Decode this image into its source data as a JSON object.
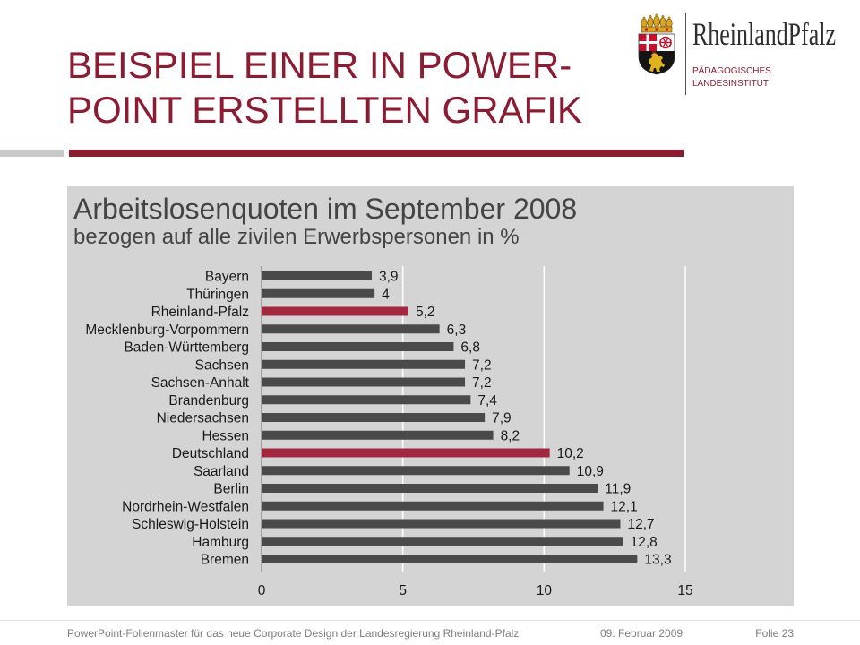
{
  "slide": {
    "title_line1": "BEISPIEL EINER IN POWER-",
    "title_line2": "POINT ERSTELLTEN GRAFIK"
  },
  "logo": {
    "crest_icon": "coat-of-arms-rheinland-pfalz",
    "wordmark": "RheinlandPfalz",
    "line1": "PÄDAGOGISCHES",
    "line2": "LANDESINSTITUT"
  },
  "colors": {
    "accent": "#8b1c32",
    "panel_background": "#d4d4d4",
    "bar_default": "#4a4a4a",
    "bar_highlight": "#a2283f",
    "gridline": "#ffffff"
  },
  "chart_data": {
    "type": "bar",
    "orientation": "horizontal",
    "title": "Arbeitslosenquoten im September 2008",
    "subtitle": "bezogen auf alle zivilen Erwerbspersonen in %",
    "categories": [
      "Bayern",
      "Thüringen",
      "Rheinland-Pfalz",
      "Mecklenburg-Vorpommern",
      "Baden-Württemberg",
      "Sachsen",
      "Sachsen-Anhalt",
      "Brandenburg",
      "Niedersachsen",
      "Hessen",
      "Deutschland",
      "Saarland",
      "Berlin",
      "Nordrhein-Westfalen",
      "Schleswig-Holstein",
      "Hamburg",
      "Bremen"
    ],
    "values": [
      3.9,
      4,
      5.2,
      6.3,
      6.8,
      7.2,
      7.2,
      7.4,
      7.9,
      8.2,
      10.2,
      10.9,
      11.9,
      12.1,
      12.7,
      12.8,
      13.3
    ],
    "value_labels": [
      "3,9",
      "4",
      "5,2",
      "6,3",
      "6,8",
      "7,2",
      "7,2",
      "7,4",
      "7,9",
      "8,2",
      "10,2",
      "10,9",
      "11,9",
      "12,1",
      "12,7",
      "12,8",
      "13,3"
    ],
    "highlight": [
      false,
      false,
      true,
      false,
      false,
      false,
      false,
      false,
      false,
      false,
      true,
      false,
      false,
      false,
      false,
      false,
      false
    ],
    "xlim": [
      0,
      15
    ],
    "xticks": [
      0,
      5,
      10,
      15
    ],
    "grid": true
  },
  "footer": {
    "text": "PowerPoint-Folienmaster für das neue Corporate Design der Landesregierung Rheinland-Pfalz",
    "date": "09. Februar 2009",
    "slide_number": "Folie 23"
  }
}
